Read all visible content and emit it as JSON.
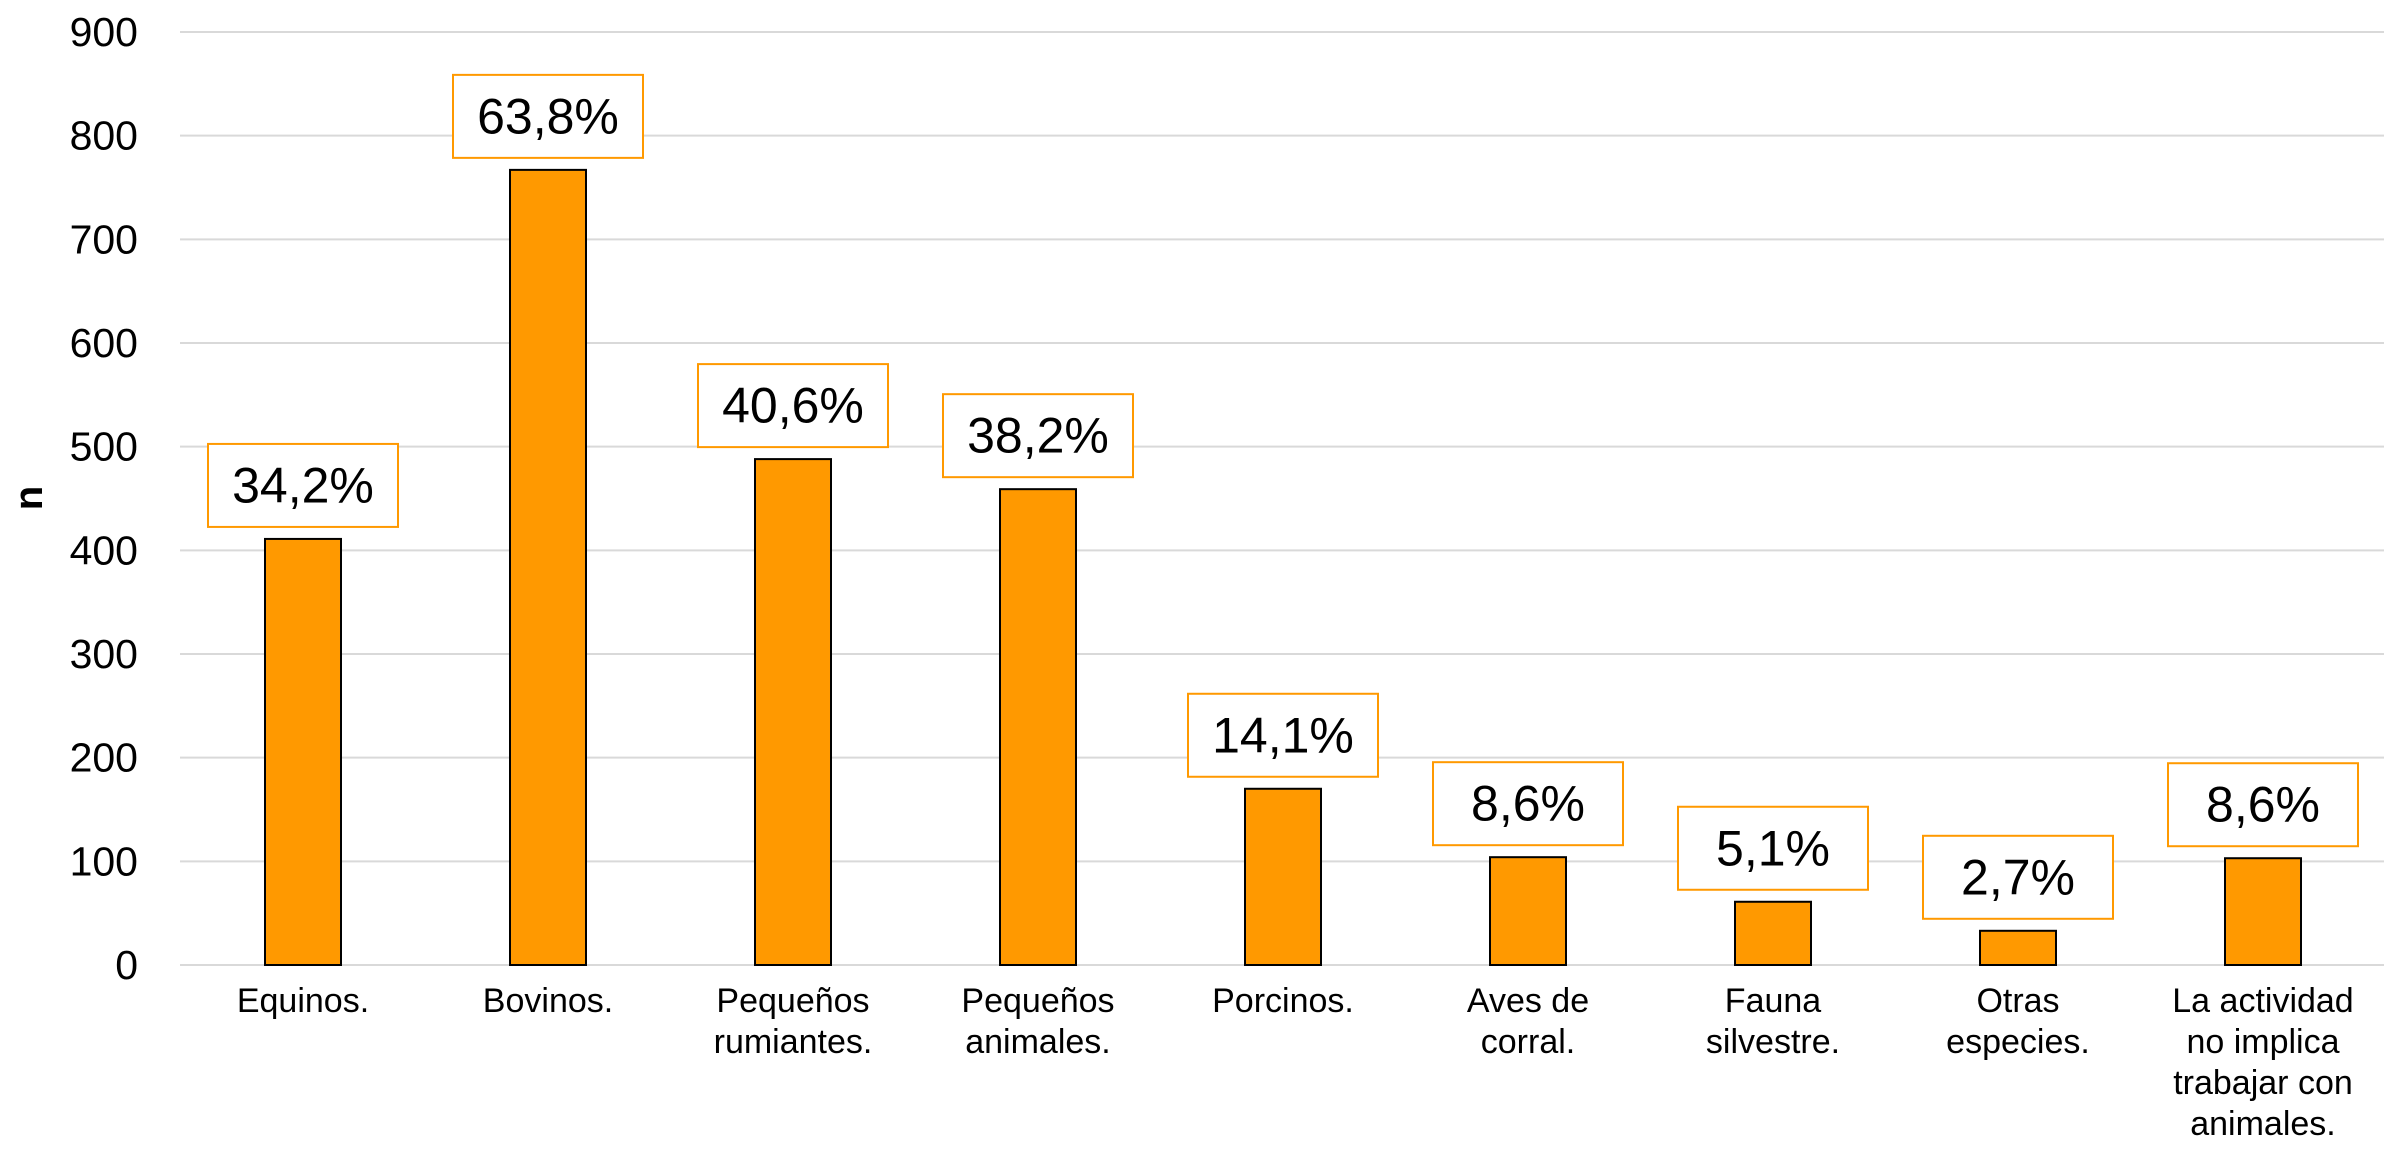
{
  "colors": {
    "bar_fill": "#FF9900",
    "bar_stroke": "#000000",
    "label_box_border": "#FF9900",
    "gridline": "#D9D9D9"
  },
  "chart_data": {
    "type": "bar",
    "title": "",
    "xlabel": "",
    "ylabel": "n",
    "ylim": [
      0,
      900
    ],
    "yticks": [
      0,
      100,
      200,
      300,
      400,
      500,
      600,
      700,
      800,
      900
    ],
    "grid": true,
    "categories": [
      [
        "Equinos."
      ],
      [
        "Bovinos."
      ],
      [
        "Pequeños",
        "rumiantes."
      ],
      [
        "Pequeños",
        "animales."
      ],
      [
        "Porcinos."
      ],
      [
        "Aves de",
        "corral."
      ],
      [
        "Fauna",
        "silvestre."
      ],
      [
        "Otras",
        "especies."
      ],
      [
        "La actividad",
        "no implica",
        "trabajar con",
        "animales."
      ]
    ],
    "values": [
      411,
      767,
      488,
      459,
      170,
      104,
      61,
      33,
      103
    ],
    "data_labels": [
      "34,2%",
      "63,8%",
      "40,6%",
      "38,2%",
      "14,1%",
      "8,6%",
      "5,1%",
      "2,7%",
      "8,6%"
    ]
  }
}
